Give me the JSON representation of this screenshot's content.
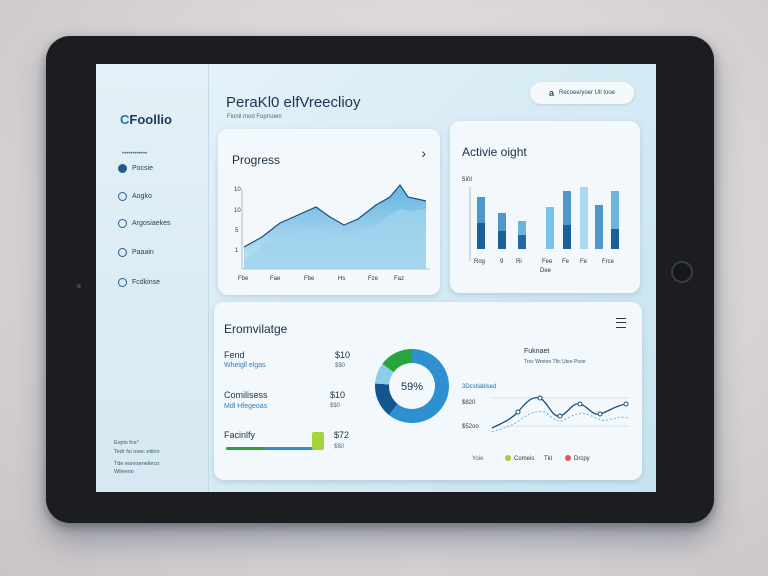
{
  "brand": {
    "logo_c": "C",
    "logo_rest": "Foollio"
  },
  "sidebar": {
    "caption": "••••••••••••",
    "items": [
      {
        "label": "Pocsie",
        "icon": "dashboard-icon"
      },
      {
        "label": "Aogko",
        "icon": "circle-icon"
      },
      {
        "label": "Argosiaekes",
        "icon": "circle-icon"
      },
      {
        "label": "Paaain",
        "icon": "circle-icon"
      },
      {
        "label": "Fcdkinse",
        "icon": "circle-icon"
      }
    ],
    "footer": [
      "Evpio fce°",
      "Tedr fsi osec etiinn",
      "Tde eoreseneiieco",
      "Wiieeno"
    ]
  },
  "header": {
    "title": "PeraKl0 elfVreeclioy",
    "subtitle": "Fionil mod Foprsoen",
    "search_icon_glyph": "a",
    "search_label": "Recoee/yoer Ull tooe"
  },
  "progress_card": {
    "title": "Progress",
    "chevron": "›",
    "y_ticks": [
      "10",
      "10",
      "5",
      "1"
    ],
    "x_ticks": [
      "Fbe",
      "Fae",
      "Fbe",
      "Hs",
      "Fze",
      "Faz"
    ]
  },
  "activity_card": {
    "title": "Activie oight",
    "y_label": "5I0I",
    "x_ticks": [
      "Rog",
      "9",
      "Ri",
      "Fee",
      "Fe",
      "Fe",
      "Frce"
    ],
    "x_sub": "Dee"
  },
  "overview_card": {
    "title": "Eromvilatge",
    "rows": [
      {
        "label": "Fend",
        "sub": "Wheigll elgas",
        "value": "$10",
        "value2": "$$0"
      },
      {
        "label": "Comilisess",
        "sub": "Mdl Hfegeoas",
        "value": "$10",
        "value2": "$$0"
      },
      {
        "label": "Facinlfy",
        "sub": "",
        "value": "$72",
        "value2": "$$0"
      }
    ],
    "donut_center": "59%",
    "line_title": "Fuknaet",
    "line_sub": "Troc Wrotoe Tfic Uteo Pooe",
    "line_y": [
      "3Dcstiablsed",
      "$820",
      "$52oo"
    ],
    "legend": [
      {
        "label": "Yoie",
        "color": "#9fb8c8"
      },
      {
        "label": "Comeis",
        "color": "#a9cf2f"
      },
      {
        "label": "Tkl",
        "color": "#7b98ad"
      },
      {
        "label": "Drcpy",
        "color": "#e0584f"
      }
    ],
    "accent": "#2e8fd1",
    "accent_dark": "#14558f",
    "green": "#2aa53b"
  }
}
